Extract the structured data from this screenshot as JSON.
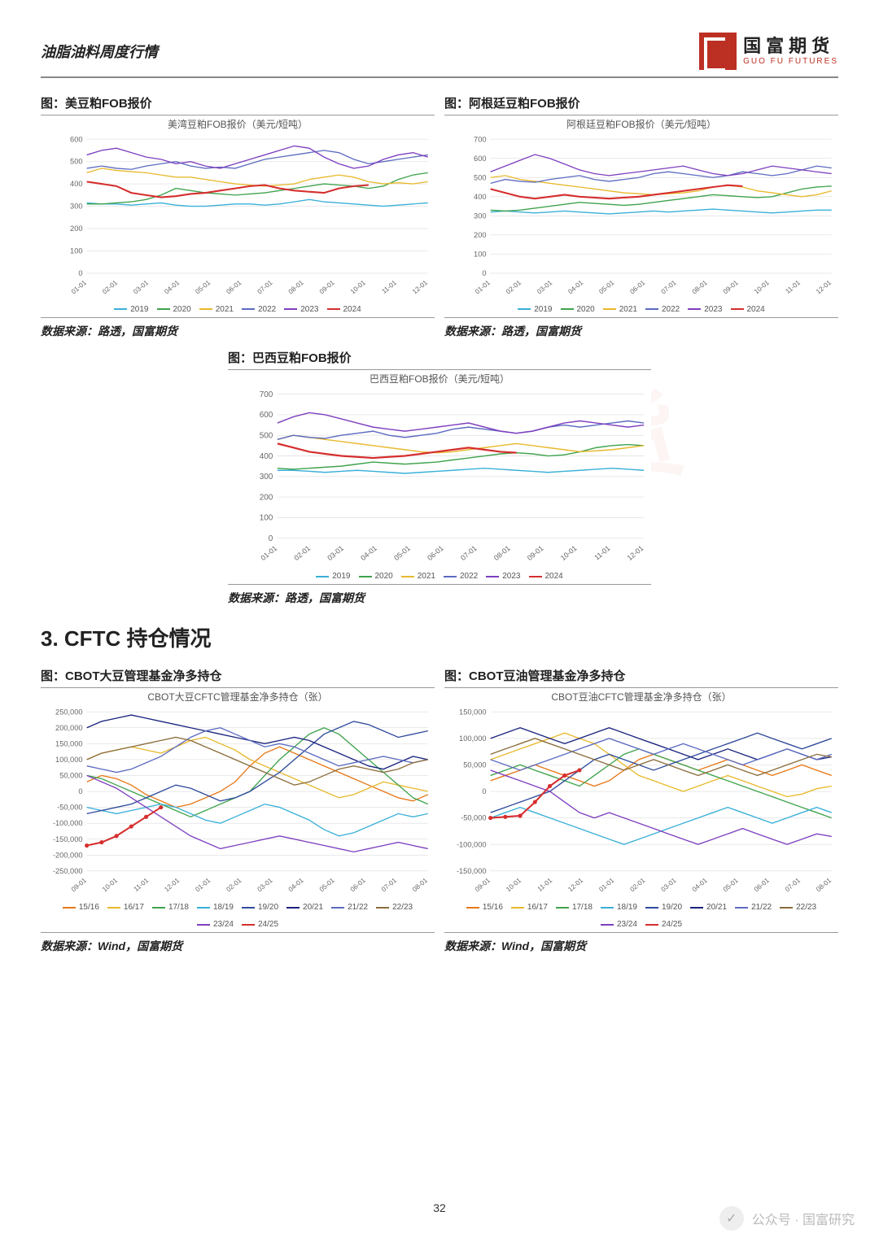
{
  "header": {
    "title": "油脂油料周度行情"
  },
  "logo": {
    "cn": "国富期货",
    "en": "GUO FU FUTURES"
  },
  "section": {
    "title": "3. CFTC 持仓情况"
  },
  "pageNumber": "32",
  "footer": {
    "source": "公众号 · 国富研究"
  },
  "fobColors": {
    "2019": "#3ab0d8",
    "2020": "#3fa34d",
    "2021": "#e8b92e",
    "2022": "#5c6bc0",
    "2023": "#7e3fbf",
    "2024": "#d62e2e"
  },
  "cftcColors": {
    "15/16": "#e77817",
    "16/17": "#e8b92e",
    "17/18": "#3fa34d",
    "18/19": "#3ab0d8",
    "19/20": "#2f4b9c",
    "20/21": "#1a237e",
    "21/22": "#5c6bc0",
    "22/23": "#8a6d3b",
    "23/24": "#7e3fbf",
    "24/25": "#d62e2e"
  },
  "fobX": [
    "01-01",
    "02-01",
    "03-01",
    "04-01",
    "05-01",
    "06-01",
    "07-01",
    "08-01",
    "09-01",
    "10-01",
    "11-01",
    "12-01"
  ],
  "cftcX": [
    "09-01",
    "10-01",
    "11-01",
    "12-01",
    "01-01",
    "02-01",
    "03-01",
    "04-01",
    "05-01",
    "06-01",
    "07-01",
    "08-01"
  ],
  "charts": {
    "us_fob": {
      "title": "图：美豆粕FOB报价",
      "sub": "美湾豆粕FOB报价（美元/短吨）",
      "source": "数据来源：路透，国富期货",
      "ylim": [
        0,
        600
      ],
      "yticks": [
        0,
        100,
        200,
        300,
        400,
        500,
        600
      ],
      "series": {
        "2019": [
          315,
          310,
          310,
          305,
          310,
          315,
          305,
          300,
          300,
          305,
          310,
          310,
          305,
          310,
          320,
          330,
          320,
          315,
          310,
          305,
          300,
          305,
          310,
          315
        ],
        "2020": [
          310,
          310,
          315,
          320,
          330,
          350,
          380,
          370,
          360,
          355,
          350,
          355,
          360,
          370,
          380,
          390,
          400,
          395,
          390,
          380,
          390,
          420,
          440,
          450
        ],
        "2021": [
          450,
          470,
          460,
          455,
          450,
          440,
          430,
          430,
          420,
          410,
          400,
          395,
          390,
          395,
          400,
          420,
          430,
          440,
          430,
          410,
          400,
          405,
          400,
          410
        ],
        "2022": [
          470,
          480,
          470,
          465,
          480,
          490,
          500,
          480,
          470,
          475,
          470,
          490,
          510,
          520,
          530,
          540,
          550,
          540,
          510,
          490,
          500,
          510,
          520,
          530
        ],
        "2023": [
          530,
          550,
          560,
          540,
          520,
          510,
          490,
          500,
          480,
          470,
          490,
          510,
          530,
          550,
          570,
          560,
          520,
          490,
          470,
          480,
          510,
          530,
          540,
          520
        ],
        "2024": [
          410,
          400,
          390,
          360,
          350,
          340,
          345,
          355,
          360,
          370,
          380,
          390,
          395,
          380,
          370,
          365,
          360,
          380,
          390,
          395
        ]
      }
    },
    "arg_fob": {
      "title": "图：阿根廷豆粕FOB报价",
      "sub": "阿根廷豆粕FOB报价（美元/短吨）",
      "source": "数据来源：路透，国富期货",
      "ylim": [
        0,
        700
      ],
      "yticks": [
        0,
        100,
        200,
        300,
        400,
        500,
        600,
        700
      ],
      "series": {
        "2019": [
          320,
          325,
          320,
          315,
          320,
          325,
          320,
          315,
          310,
          315,
          320,
          325,
          320,
          325,
          330,
          335,
          330,
          325,
          320,
          315,
          320,
          325,
          330,
          330
        ],
        "2020": [
          330,
          325,
          330,
          340,
          350,
          360,
          370,
          365,
          360,
          355,
          360,
          370,
          380,
          390,
          400,
          410,
          405,
          400,
          395,
          400,
          420,
          440,
          450,
          455
        ],
        "2021": [
          500,
          510,
          490,
          480,
          470,
          460,
          450,
          440,
          430,
          420,
          415,
          410,
          415,
          420,
          430,
          450,
          460,
          450,
          430,
          420,
          410,
          400,
          410,
          430
        ],
        "2022": [
          470,
          490,
          480,
          475,
          490,
          500,
          510,
          490,
          480,
          490,
          500,
          520,
          530,
          520,
          510,
          500,
          510,
          530,
          520,
          510,
          520,
          540,
          560,
          550
        ],
        "2023": [
          530,
          560,
          590,
          620,
          600,
          570,
          540,
          520,
          510,
          520,
          530,
          540,
          550,
          560,
          540,
          520,
          510,
          520,
          540,
          560,
          550,
          540,
          530,
          520
        ],
        "2024": [
          440,
          420,
          400,
          390,
          400,
          410,
          400,
          395,
          390,
          395,
          400,
          410,
          420,
          430,
          440,
          450,
          460,
          455
        ]
      }
    },
    "brz_fob": {
      "title": "图：巴西豆粕FOB报价",
      "sub": "巴西豆粕FOB报价（美元/短吨）",
      "source": "数据来源：路透，国富期货",
      "ylim": [
        0,
        700
      ],
      "yticks": [
        0,
        100,
        200,
        300,
        400,
        500,
        600,
        700
      ],
      "series": {
        "2019": [
          330,
          330,
          325,
          320,
          325,
          330,
          325,
          320,
          315,
          320,
          325,
          330,
          335,
          340,
          335,
          330,
          325,
          320,
          325,
          330,
          335,
          340,
          335,
          330
        ],
        "2020": [
          340,
          335,
          340,
          345,
          350,
          360,
          370,
          365,
          360,
          365,
          370,
          380,
          390,
          400,
          410,
          415,
          410,
          400,
          405,
          420,
          440,
          450,
          455,
          450
        ],
        "2021": [
          480,
          500,
          490,
          480,
          470,
          460,
          450,
          440,
          430,
          420,
          415,
          420,
          430,
          440,
          450,
          460,
          450,
          440,
          430,
          420,
          425,
          430,
          440,
          450
        ],
        "2022": [
          480,
          500,
          490,
          485,
          500,
          510,
          520,
          500,
          490,
          500,
          510,
          530,
          540,
          530,
          520,
          510,
          520,
          540,
          550,
          540,
          550,
          560,
          570,
          560
        ],
        "2023": [
          560,
          590,
          610,
          600,
          580,
          560,
          540,
          530,
          520,
          530,
          540,
          550,
          560,
          540,
          520,
          510,
          520,
          540,
          560,
          570,
          560,
          550,
          540,
          550
        ],
        "2024": [
          460,
          440,
          420,
          410,
          400,
          395,
          390,
          395,
          400,
          410,
          420,
          430,
          440,
          430,
          420,
          415
        ]
      }
    },
    "soy_cftc": {
      "title": "图：CBOT大豆管理基金净多持仓",
      "sub": "CBOT大豆CFTC管理基金净多持仓（张）",
      "source": "数据来源：Wind，国富期货",
      "ylim": [
        -250000,
        250000
      ],
      "yticks": [
        -250000,
        -200000,
        -150000,
        -100000,
        -50000,
        0,
        50000,
        100000,
        150000,
        200000,
        250000
      ],
      "series": {
        "15/16": [
          30000,
          50000,
          40000,
          20000,
          -10000,
          -30000,
          -50000,
          -40000,
          -20000,
          0,
          30000,
          80000,
          120000,
          140000,
          120000,
          100000,
          80000,
          60000,
          40000,
          20000,
          0,
          -20000,
          -30000,
          -10000
        ],
        "16/17": [
          100000,
          120000,
          130000,
          140000,
          130000,
          120000,
          140000,
          160000,
          170000,
          150000,
          130000,
          100000,
          80000,
          60000,
          40000,
          20000,
          0,
          -20000,
          -10000,
          10000,
          30000,
          20000,
          10000,
          0
        ],
        "17/18": [
          50000,
          40000,
          20000,
          0,
          -20000,
          -40000,
          -60000,
          -80000,
          -60000,
          -40000,
          -20000,
          0,
          50000,
          100000,
          140000,
          180000,
          200000,
          180000,
          140000,
          100000,
          60000,
          20000,
          -20000,
          -40000
        ],
        "18/19": [
          -50000,
          -60000,
          -70000,
          -60000,
          -50000,
          -40000,
          -50000,
          -70000,
          -90000,
          -100000,
          -80000,
          -60000,
          -40000,
          -50000,
          -70000,
          -90000,
          -120000,
          -140000,
          -130000,
          -110000,
          -90000,
          -70000,
          -80000,
          -70000
        ],
        "19/20": [
          -70000,
          -60000,
          -50000,
          -40000,
          -20000,
          0,
          20000,
          10000,
          -10000,
          -30000,
          -20000,
          0,
          30000,
          60000,
          100000,
          140000,
          180000,
          200000,
          220000,
          210000,
          190000,
          170000,
          180000,
          190000
        ],
        "20/21": [
          200000,
          220000,
          230000,
          240000,
          230000,
          220000,
          210000,
          200000,
          190000,
          180000,
          170000,
          160000,
          150000,
          160000,
          170000,
          160000,
          140000,
          120000,
          100000,
          80000,
          70000,
          90000,
          110000,
          100000
        ],
        "21/22": [
          80000,
          70000,
          60000,
          70000,
          90000,
          110000,
          140000,
          170000,
          190000,
          200000,
          180000,
          160000,
          140000,
          150000,
          140000,
          120000,
          100000,
          80000,
          90000,
          100000,
          110000,
          100000,
          90000,
          100000
        ],
        "22/23": [
          100000,
          120000,
          130000,
          140000,
          150000,
          160000,
          170000,
          160000,
          140000,
          120000,
          100000,
          80000,
          60000,
          40000,
          20000,
          30000,
          50000,
          70000,
          80000,
          70000,
          60000,
          70000,
          90000,
          100000
        ],
        "23/24": [
          50000,
          30000,
          10000,
          -20000,
          -50000,
          -80000,
          -110000,
          -140000,
          -160000,
          -180000,
          -170000,
          -160000,
          -150000,
          -140000,
          -150000,
          -160000,
          -170000,
          -180000,
          -190000,
          -180000,
          -170000,
          -160000,
          -170000,
          -180000
        ],
        "24/25": [
          -170000,
          -160000,
          -140000,
          -110000,
          -80000,
          -50000
        ]
      }
    },
    "oil_cftc": {
      "title": "图：CBOT豆油管理基金净多持仓",
      "sub": "CBOT豆油CFTC管理基金净多持仓（张）",
      "source": "数据来源：Wind，国富期货",
      "ylim": [
        -150000,
        150000
      ],
      "yticks": [
        -150000,
        -100000,
        -50000,
        0,
        50000,
        100000,
        150000
      ],
      "series": {
        "15/16": [
          20000,
          30000,
          40000,
          50000,
          40000,
          30000,
          20000,
          10000,
          20000,
          40000,
          60000,
          70000,
          60000,
          50000,
          40000,
          50000,
          60000,
          50000,
          40000,
          30000,
          40000,
          50000,
          40000,
          30000
        ],
        "16/17": [
          60000,
          70000,
          80000,
          90000,
          100000,
          110000,
          100000,
          90000,
          70000,
          50000,
          30000,
          20000,
          10000,
          0,
          10000,
          20000,
          30000,
          20000,
          10000,
          0,
          -10000,
          -5000,
          5000,
          10000
        ],
        "17/18": [
          30000,
          40000,
          50000,
          40000,
          30000,
          20000,
          10000,
          30000,
          50000,
          70000,
          80000,
          70000,
          60000,
          50000,
          40000,
          30000,
          20000,
          10000,
          0,
          -10000,
          -20000,
          -30000,
          -40000,
          -50000
        ],
        "18/19": [
          -50000,
          -40000,
          -30000,
          -40000,
          -50000,
          -60000,
          -70000,
          -80000,
          -90000,
          -100000,
          -90000,
          -80000,
          -70000,
          -60000,
          -50000,
          -40000,
          -30000,
          -40000,
          -50000,
          -60000,
          -50000,
          -40000,
          -30000,
          -40000
        ],
        "19/20": [
          -40000,
          -30000,
          -20000,
          -10000,
          0,
          20000,
          40000,
          60000,
          70000,
          60000,
          50000,
          40000,
          50000,
          60000,
          70000,
          80000,
          90000,
          100000,
          110000,
          100000,
          90000,
          80000,
          90000,
          100000
        ],
        "20/21": [
          100000,
          110000,
          120000,
          110000,
          100000,
          90000,
          100000,
          110000,
          120000,
          110000,
          100000,
          90000,
          80000,
          70000,
          60000,
          70000,
          80000,
          70000,
          60000,
          70000,
          80000,
          70000,
          60000,
          65000
        ],
        "21/22": [
          60000,
          50000,
          40000,
          50000,
          60000,
          70000,
          80000,
          90000,
          100000,
          90000,
          80000,
          70000,
          80000,
          90000,
          80000,
          70000,
          60000,
          50000,
          60000,
          70000,
          80000,
          70000,
          60000,
          70000
        ],
        "22/23": [
          70000,
          80000,
          90000,
          100000,
          90000,
          80000,
          70000,
          60000,
          50000,
          40000,
          50000,
          60000,
          50000,
          40000,
          30000,
          40000,
          50000,
          40000,
          30000,
          40000,
          50000,
          60000,
          70000,
          65000
        ],
        "23/24": [
          40000,
          30000,
          20000,
          10000,
          0,
          -20000,
          -40000,
          -50000,
          -40000,
          -50000,
          -60000,
          -70000,
          -80000,
          -90000,
          -100000,
          -90000,
          -80000,
          -70000,
          -80000,
          -90000,
          -100000,
          -90000,
          -80000,
          -85000
        ],
        "24/25": [
          -50000,
          -48000,
          -46000,
          -20000,
          10000,
          30000,
          40000
        ]
      }
    }
  }
}
